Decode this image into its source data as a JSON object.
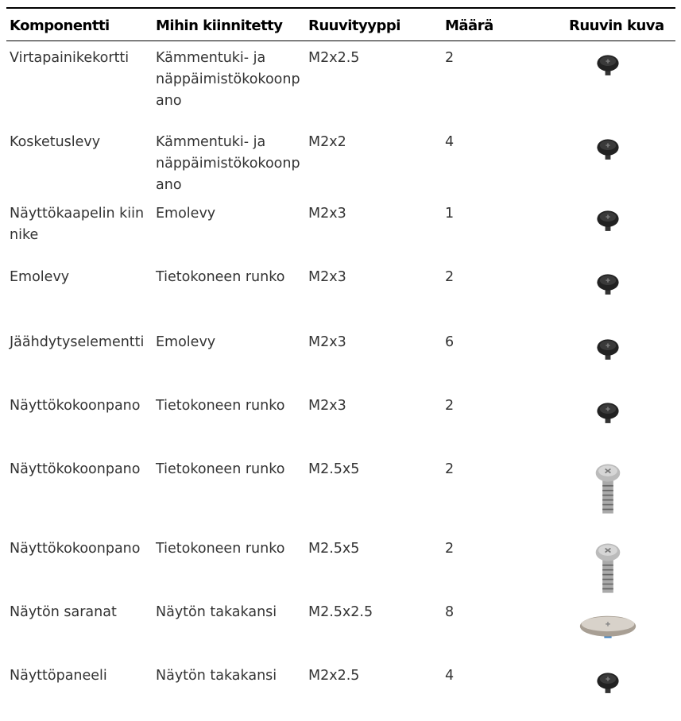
{
  "table": {
    "header": [
      "Komponentti",
      "Mihin kiinnitetty",
      "Ruuvityyppi",
      "Määrä",
      "Ruuvin kuva"
    ],
    "rows": [
      [
        "Virtapainikekortti",
        "Kämmentuki- ja näppäimistökokoonpano",
        "M2x2.5",
        "2"
      ],
      [
        "Kosketuslevy",
        "Kämmentuki- ja näppäimistökokoonpano",
        "M2x2",
        "4"
      ],
      [
        "Näyttökaapelin kiinnike",
        "Emolevy",
        "M2x3",
        "1"
      ],
      [
        "Emolevy",
        "Tietokoneen runko",
        "M2x3",
        "2"
      ],
      [
        "Jäähdytyselementti",
        "Emolevy",
        "M2x3",
        "6"
      ],
      [
        "Näyttökokoonpano",
        "Tietokoneen runko",
        "M2x3",
        "2"
      ],
      [
        "Näyttökokoonpano",
        "Tietokoneen runko",
        "M2.5x5",
        "2"
      ],
      [
        "Näyttökokoonpano",
        "Tietokoneen runko",
        "M2.5x5",
        "2"
      ],
      [
        "Näytön saranat",
        "Näytön takakansi",
        "M2.5x2.5",
        "8"
      ],
      [
        "Näyttöpaneeli",
        "Näytön takakansi",
        "M2x2.5",
        "4"
      ]
    ]
  }
}
